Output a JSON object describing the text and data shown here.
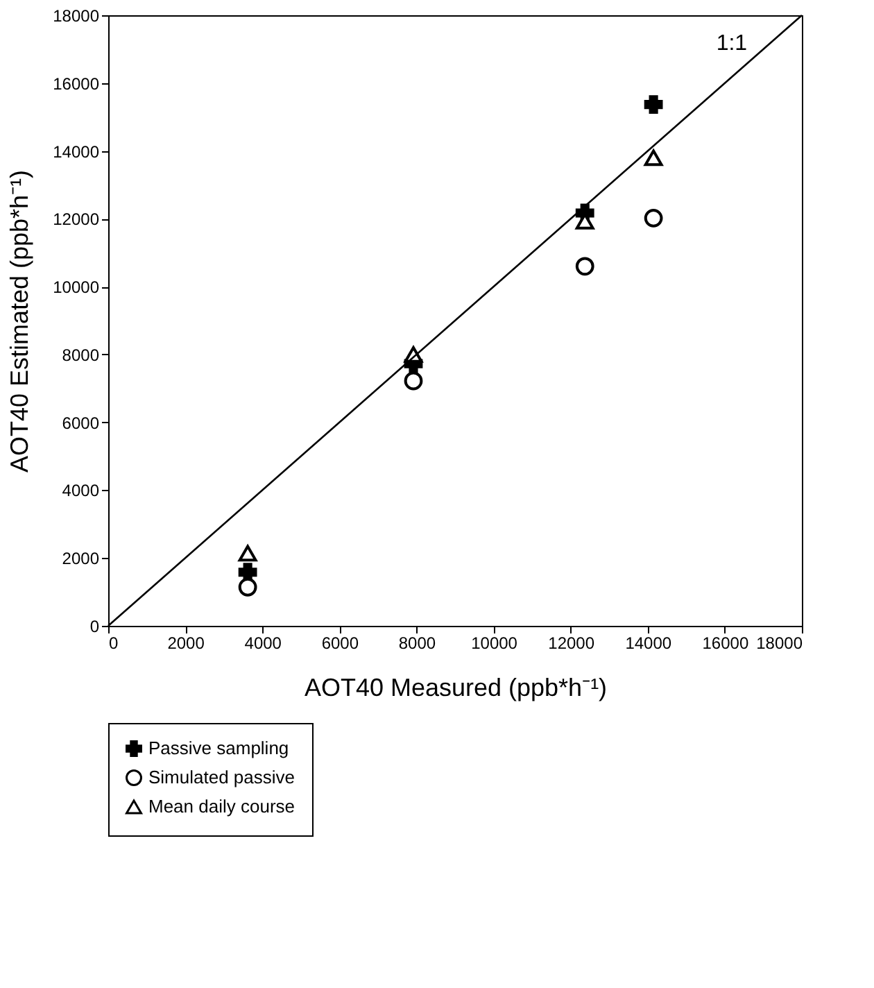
{
  "chart_data": {
    "type": "scatter",
    "xlabel": "AOT40 Measured (ppb*h⁻¹)",
    "ylabel": "AOT40 Estimated (ppb*h⁻¹)",
    "xlim": [
      0,
      18000
    ],
    "ylim": [
      0,
      18000
    ],
    "xticks": [
      0,
      2000,
      4000,
      6000,
      8000,
      10000,
      12000,
      14000,
      16000,
      18000
    ],
    "yticks": [
      0,
      2000,
      4000,
      6000,
      8000,
      10000,
      12000,
      14000,
      16000,
      18000
    ],
    "grid": false,
    "legend": "bottom left",
    "x": [
      3620,
      7920,
      12370,
      14150
    ],
    "series": [
      {
        "name": "Passive sampling",
        "color": "#000000",
        "marker": "cross",
        "values": [
          1580,
          7730,
          12170,
          15370
        ]
      },
      {
        "name": "Simulated passive",
        "color": "#000000",
        "marker": "circle",
        "values": [
          1140,
          7220,
          10600,
          12020
        ]
      },
      {
        "name": "Mean daily course",
        "color": "#000000",
        "marker": "triangle",
        "values": [
          2140,
          8000,
          11930,
          13800
        ]
      },
      {
        "type": "line",
        "color": "#000000",
        "x": [
          0,
          18000
        ],
        "values": [
          0,
          18000
        ]
      }
    ],
    "annotations": [
      {
        "text": "1:1",
        "x": 16900,
        "y": 16700
      }
    ]
  }
}
